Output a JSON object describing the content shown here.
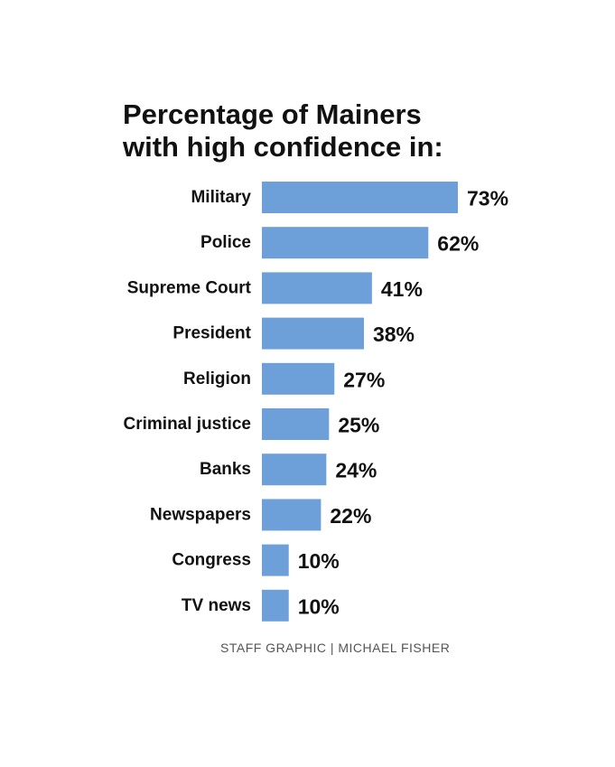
{
  "colors": {
    "bar": "#6d9fd8",
    "text": "#111111",
    "credit": "#555555"
  },
  "credit": "STAFF GRAPHIC | MICHAEL FISHER",
  "chart_data": {
    "type": "bar",
    "orientation": "horizontal",
    "title": [
      "Percentage of Mainers",
      "with high confidence in:"
    ],
    "categories": [
      "Military",
      "Police",
      "Supreme Court",
      "President",
      "Religion",
      "Criminal justice",
      "Banks",
      "Newspapers",
      "Congress",
      "TV news"
    ],
    "values": [
      73,
      62,
      41,
      38,
      27,
      25,
      24,
      22,
      10,
      10
    ],
    "value_labels": [
      "73%",
      "62%",
      "41%",
      "38%",
      "27%",
      "25%",
      "24%",
      "22%",
      "10%",
      "10%"
    ],
    "unit": "%",
    "grid": false,
    "legend": "none"
  }
}
